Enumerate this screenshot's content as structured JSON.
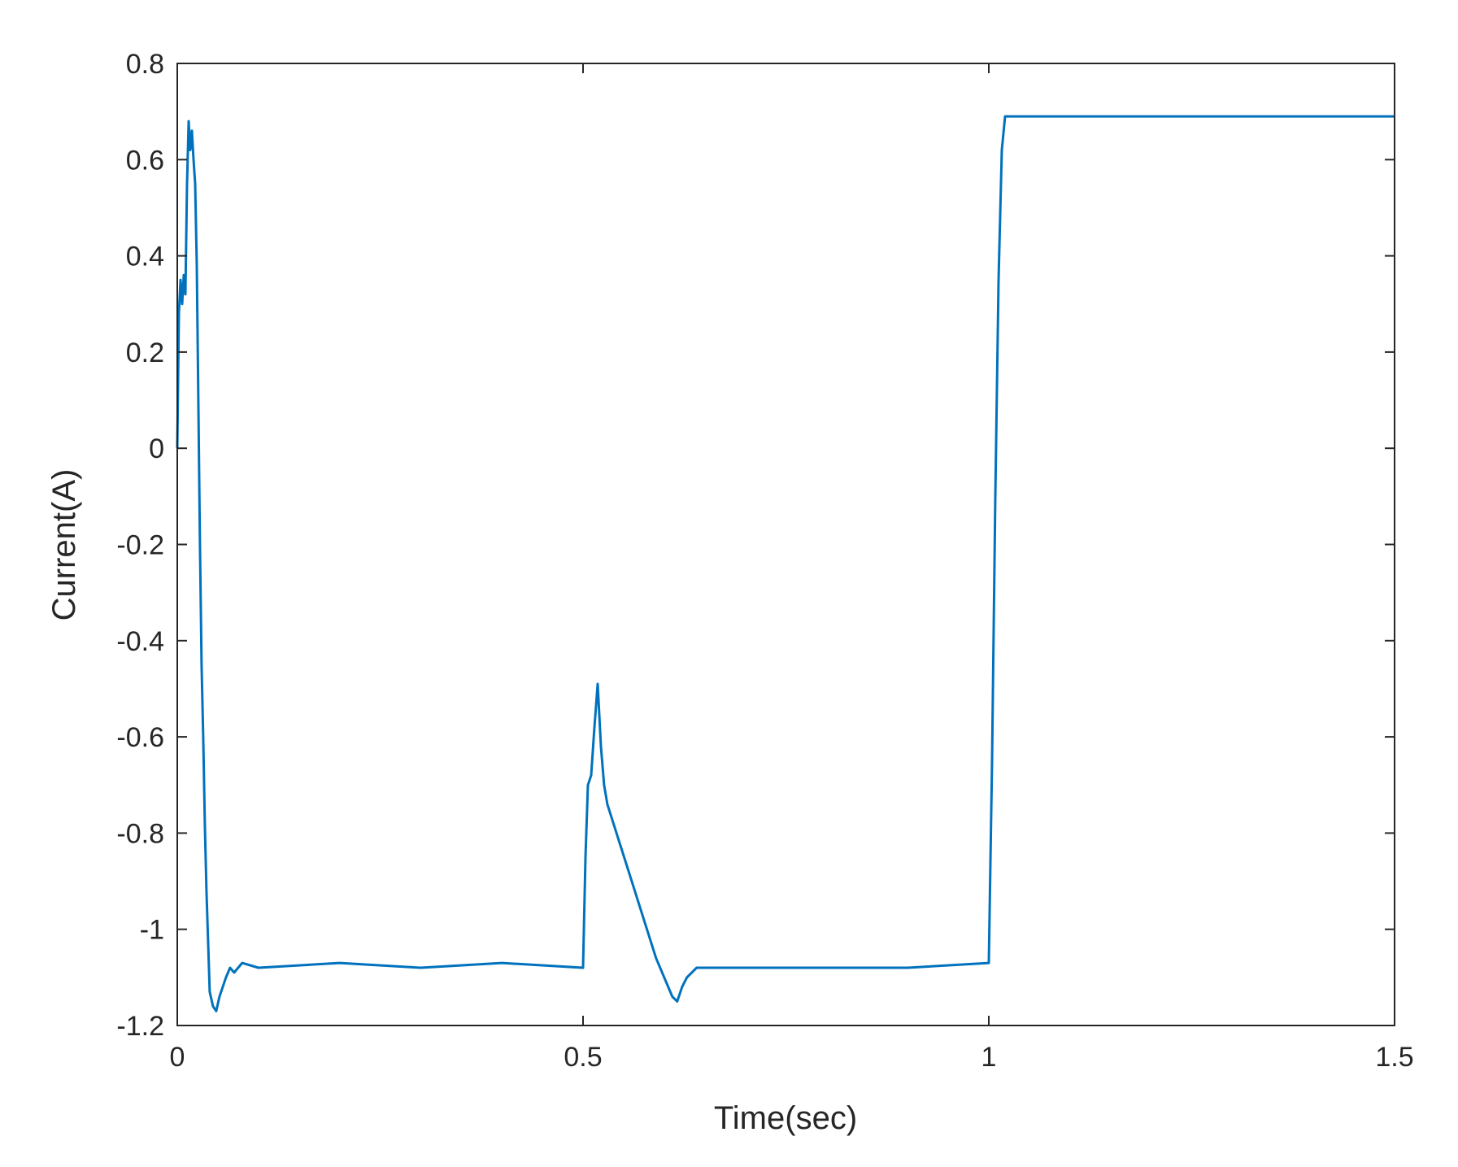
{
  "chart_data": {
    "type": "line",
    "title": "",
    "xlabel": "Time(sec)",
    "ylabel": "Current(A)",
    "xlim": [
      0,
      1.5
    ],
    "ylim": [
      -1.2,
      0.8
    ],
    "xticks": [
      0,
      0.5,
      1,
      1.5
    ],
    "xtick_labels": [
      "0",
      "0.5",
      "1",
      "1.5"
    ],
    "yticks": [
      0.8,
      0.6,
      0.4,
      0.2,
      0,
      -0.2,
      -0.4,
      -0.6,
      -0.8,
      -1,
      -1.2
    ],
    "ytick_labels": [
      "0.8",
      "0.6",
      "0.4",
      "0.2",
      "0",
      "-0.2",
      "-0.4",
      "-0.6",
      "-0.8",
      "-1",
      "-1.2"
    ],
    "grid": false,
    "line_color": "#0072BD",
    "axis_color": "#262626",
    "series": [
      {
        "name": "",
        "x": [
          0,
          0.002,
          0.004,
          0.006,
          0.008,
          0.01,
          0.012,
          0.014,
          0.016,
          0.018,
          0.02,
          0.022,
          0.024,
          0.026,
          0.028,
          0.03,
          0.032,
          0.034,
          0.036,
          0.04,
          0.044,
          0.048,
          0.052,
          0.056,
          0.06,
          0.065,
          0.07,
          0.08,
          0.1,
          0.2,
          0.3,
          0.4,
          0.5,
          0.503,
          0.506,
          0.51,
          0.514,
          0.518,
          0.522,
          0.526,
          0.53,
          0.56,
          0.59,
          0.61,
          0.616,
          0.622,
          0.628,
          0.64,
          0.7,
          0.8,
          0.9,
          1.0,
          1.004,
          1.008,
          1.012,
          1.016,
          1.02,
          1.03,
          1.1,
          1.2,
          1.3,
          1.4,
          1.5
        ],
        "y": [
          0,
          0.28,
          0.35,
          0.3,
          0.36,
          0.32,
          0.55,
          0.68,
          0.62,
          0.66,
          0.6,
          0.55,
          0.38,
          0.1,
          -0.2,
          -0.45,
          -0.6,
          -0.78,
          -0.92,
          -1.13,
          -1.16,
          -1.17,
          -1.14,
          -1.12,
          -1.1,
          -1.08,
          -1.09,
          -1.07,
          -1.08,
          -1.07,
          -1.08,
          -1.07,
          -1.08,
          -0.85,
          -0.7,
          -0.68,
          -0.58,
          -0.49,
          -0.62,
          -0.7,
          -0.74,
          -0.9,
          -1.06,
          -1.14,
          -1.15,
          -1.12,
          -1.1,
          -1.08,
          -1.08,
          -1.08,
          -1.08,
          -1.07,
          -0.65,
          -0.1,
          0.35,
          0.62,
          0.69,
          0.69,
          0.69,
          0.69,
          0.69,
          0.69,
          0.69
        ]
      }
    ]
  }
}
